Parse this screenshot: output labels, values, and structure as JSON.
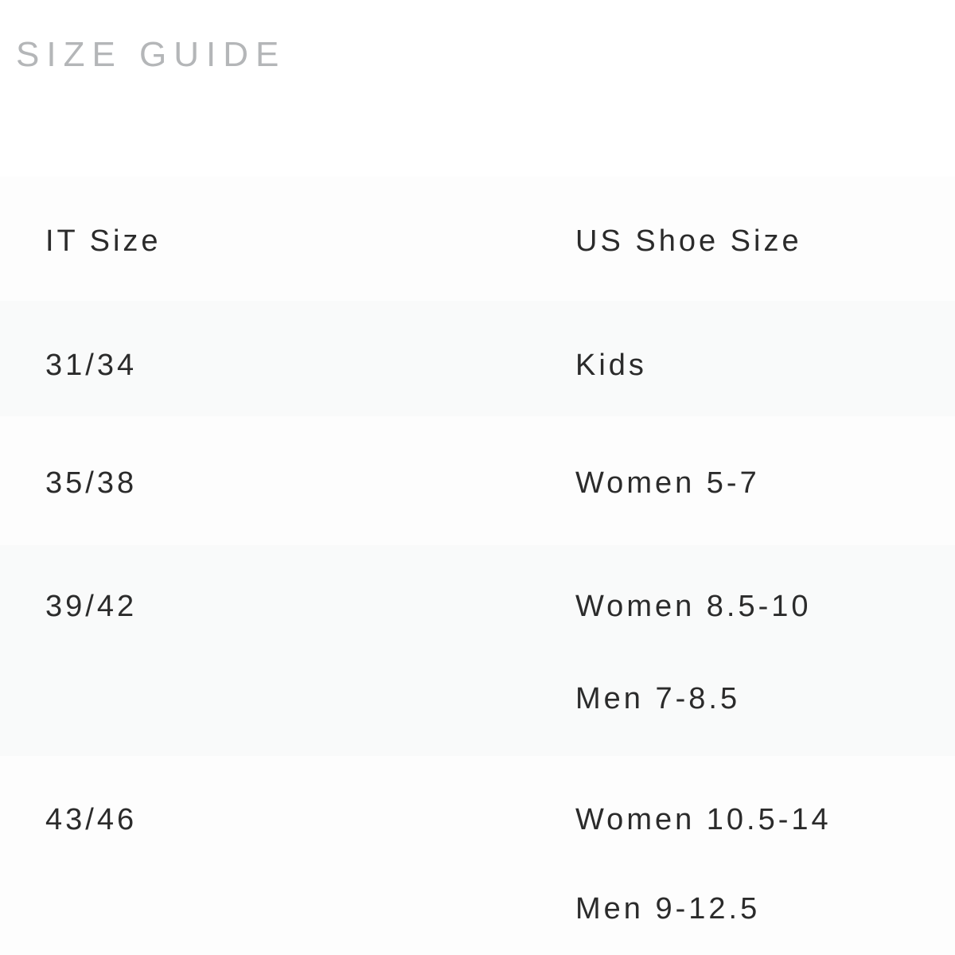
{
  "page": {
    "title": "SIZE GUIDE"
  },
  "table": {
    "columns": {
      "it": "IT Size",
      "us": "US Shoe Size"
    },
    "rows": [
      {
        "it_size": "31/34",
        "us_sizes": [
          "Kids"
        ]
      },
      {
        "it_size": "35/38",
        "us_sizes": [
          "Women 5-7"
        ]
      },
      {
        "it_size": "39/42",
        "us_sizes": [
          "Women 8.5-10",
          "Men 7-8.5"
        ]
      },
      {
        "it_size": "43/46",
        "us_sizes": [
          "Women 10.5-14",
          "Men 9-12.5"
        ]
      }
    ],
    "colors": {
      "stripe": "#f9fafa",
      "text": "#2b2b2b",
      "title": "#b4b6b8"
    }
  }
}
